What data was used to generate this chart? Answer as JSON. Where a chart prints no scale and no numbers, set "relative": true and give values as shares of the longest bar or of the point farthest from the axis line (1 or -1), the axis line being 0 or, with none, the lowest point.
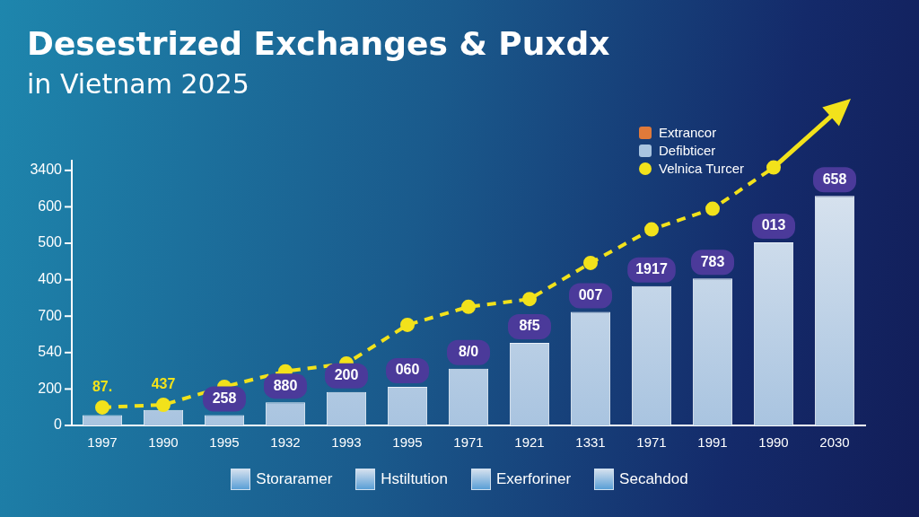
{
  "chart_data": {
    "type": "bar",
    "title": "Desestrized Exchanges & Puxdx",
    "subtitle": "in Vietnam 2025",
    "relative": true,
    "categories": [
      "1997",
      "1990",
      "1995",
      "1932",
      "1993",
      "1995",
      "1971",
      "1921",
      "1331",
      "1971",
      "1991",
      "1990",
      "2030"
    ],
    "series": [
      {
        "name": "Extrancor",
        "color": "#e07a3a",
        "values": [
          null,
          null,
          null,
          null,
          null,
          null,
          null,
          null,
          null,
          null,
          null,
          null,
          null
        ]
      },
      {
        "name": "Defibticer",
        "color": "#a9c4e0",
        "values": [
          0.04,
          0.06,
          0.04,
          0.09,
          0.13,
          0.15,
          0.22,
          0.32,
          0.44,
          0.54,
          0.57,
          0.71,
          0.89
        ]
      },
      {
        "name": "Velnica Turcer",
        "type": "line",
        "color": "#f2e21b",
        "marker": "circle",
        "line_style": "dashed",
        "values": [
          0.07,
          0.08,
          0.15,
          0.21,
          0.24,
          0.39,
          0.46,
          0.49,
          0.63,
          0.76,
          0.84,
          1,
          null
        ]
      }
    ],
    "legend": "top right",
    "annotations": [
      "0",
      "200",
      "540",
      "700",
      "400",
      "500",
      "600",
      "3400",
      {
        "text": "87.",
        "x": "1997",
        "y": 0.07
      },
      {
        "text": "437",
        "x": "1990",
        "y": 0.08
      },
      {
        "text": "258",
        "x": "1995",
        "y": 0.04
      },
      {
        "text": "880",
        "x": "1932",
        "y": 0.09
      },
      {
        "text": "200",
        "x": "1993",
        "y": 0.13
      },
      "060",
      {
        "text": "8/0",
        "x": "1971",
        "y": 0.22
      },
      {
        "text": "8f5",
        "x": "1921",
        "y": 0.32
      },
      {
        "text": "007",
        "x": "1331",
        "y": 0.44
      },
      "1917",
      {
        "text": "783",
        "x": "1991",
        "y": 0.57
      },
      "013",
      {
        "text": "658",
        "x": "2030",
        "y": 0.89
      },
      "Storaramer",
      "Hstiltution",
      "Exerforiner",
      "Secahdod"
    ]
  }
}
